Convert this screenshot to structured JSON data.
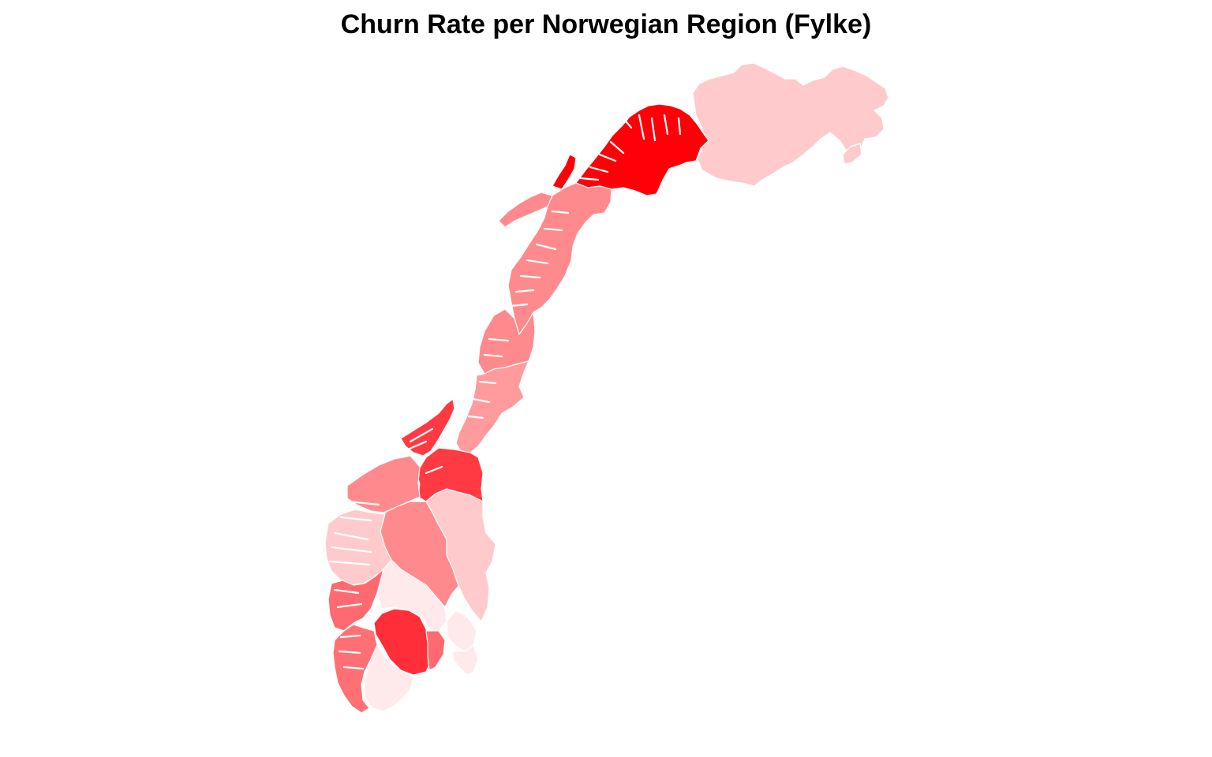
{
  "title": "Churn Rate per Norwegian Region (Fylke)",
  "map": {
    "type": "choropleth",
    "country": "Norway",
    "legend": "none",
    "regions": [
      {
        "id": "finnmark",
        "color": "#FFCACC"
      },
      {
        "id": "troms",
        "color": "#FF0008"
      },
      {
        "id": "nordland",
        "color": "#FF8A8D"
      },
      {
        "id": "trondelag-north",
        "color": "#FF8A8D"
      },
      {
        "id": "trondelag-south",
        "color": "#FF9A9D"
      },
      {
        "id": "more-og-romsdal",
        "color": "#FF3A42"
      },
      {
        "id": "oppland-north",
        "color": "#FF3A42"
      },
      {
        "id": "sogn-og-fjordane",
        "color": "#FF8A8D"
      },
      {
        "id": "oppland",
        "color": "#FF8A8D"
      },
      {
        "id": "hedmark",
        "color": "#FFCACC"
      },
      {
        "id": "hordaland",
        "color": "#FFCACC"
      },
      {
        "id": "buskerud",
        "color": "#FFEAEB"
      },
      {
        "id": "telemark",
        "color": "#FF2E38"
      },
      {
        "id": "rogaland",
        "color": "#FF6A70"
      },
      {
        "id": "vest-agder",
        "color": "#FF7075"
      },
      {
        "id": "aust-agder",
        "color": "#FFEAEB"
      },
      {
        "id": "vestfold",
        "color": "#FF6A70"
      },
      {
        "id": "ostfold",
        "color": "#FFEAEB"
      },
      {
        "id": "akershus",
        "color": "#FFEAEB"
      }
    ]
  }
}
